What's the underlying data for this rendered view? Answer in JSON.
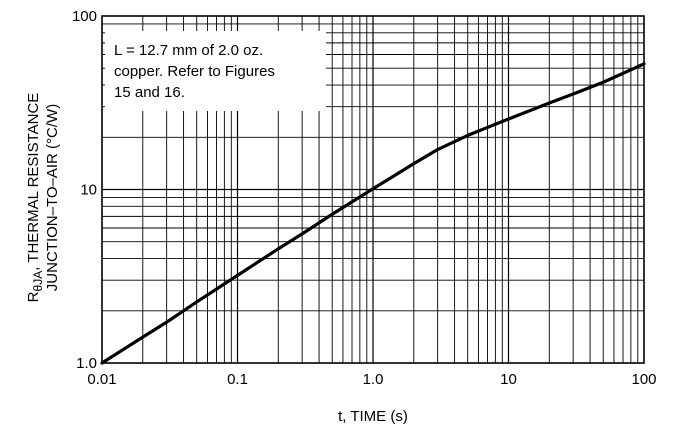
{
  "chart_data": {
    "type": "line",
    "x_scale": "log",
    "y_scale": "log",
    "xlim": [
      0.01,
      100
    ],
    "ylim": [
      1.0,
      100
    ],
    "grid": true,
    "xlabel": "t, TIME (s)",
    "ylabel_line1": {
      "main": "R",
      "sub": "θJA",
      "rest": ", THERMAL RESISTANCE"
    },
    "ylabel_line2": "JUNCTION–TO–AIR (°C/W)",
    "x_ticks": [
      {
        "value": 0.01,
        "label": "0.01"
      },
      {
        "value": 0.1,
        "label": "0.1"
      },
      {
        "value": 1,
        "label": "1.0"
      },
      {
        "value": 10,
        "label": "10"
      },
      {
        "value": 100,
        "label": "100"
      }
    ],
    "y_ticks": [
      {
        "value": 1,
        "label": "1.0"
      },
      {
        "value": 10,
        "label": "10"
      },
      {
        "value": 100,
        "label": "100"
      }
    ],
    "annotation": [
      "L = 12.7 mm of 2.0 oz.",
      "copper. Refer to Figures",
      "15 and 16."
    ],
    "series": [
      {
        "color": "#000000",
        "x": [
          0.01,
          0.02,
          0.03,
          0.05,
          0.1,
          0.2,
          0.3,
          0.5,
          1,
          2,
          3,
          5,
          10,
          20,
          30,
          50,
          100
        ],
        "y": [
          1.0,
          1.41,
          1.72,
          2.25,
          3.2,
          4.55,
          5.55,
          7.2,
          10.1,
          14.1,
          17.0,
          20.5,
          25.5,
          31.5,
          35.5,
          41.5,
          53.0
        ]
      }
    ]
  }
}
